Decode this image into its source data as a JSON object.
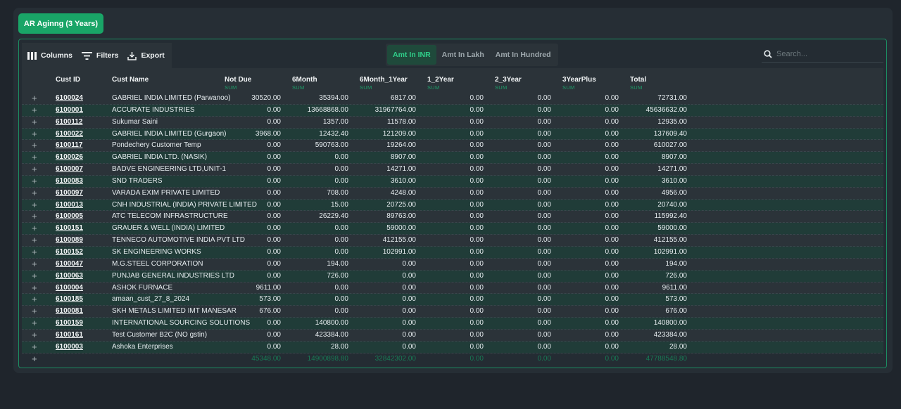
{
  "title_button": "AR Aginng (3 Years)",
  "toolbar": {
    "columns": "Columns",
    "filters": "Filters",
    "export": "Export"
  },
  "units": [
    "Amt In INR",
    "Amt In Lakh",
    "Amt In Hundred"
  ],
  "active_unit": "Amt In INR",
  "search": {
    "placeholder": "Search..."
  },
  "columns": {
    "cust_id": "Cust ID",
    "cust_name": "Cust Name",
    "not_due": "Not Due",
    "m6": "6Month",
    "m6_1y": "6Month_1Year",
    "y1_2": "1_2Year",
    "y2_3": "2_3Year",
    "y3plus": "3YearPlus",
    "total": "Total",
    "sum_label": "SUM"
  },
  "rows": [
    [
      "6100024",
      "GABRIEL INDIA LIMITED (Parwanoo)",
      "30520.00",
      "35394.00",
      "6817.00",
      "0.00",
      "0.00",
      "0.00",
      "72731.00"
    ],
    [
      "6100001",
      "ACCURATE INDUSTRIES",
      "0.00",
      "13668868.00",
      "31967764.00",
      "0.00",
      "0.00",
      "0.00",
      "45636632.00"
    ],
    [
      "6100112",
      "Sukumar Saini",
      "0.00",
      "1357.00",
      "11578.00",
      "0.00",
      "0.00",
      "0.00",
      "12935.00"
    ],
    [
      "6100022",
      "GABRIEL INDIA LIMITED (Gurgaon)",
      "3968.00",
      "12432.40",
      "121209.00",
      "0.00",
      "0.00",
      "0.00",
      "137609.40"
    ],
    [
      "6100117",
      "Pondechery Customer Temp",
      "0.00",
      "590763.00",
      "19264.00",
      "0.00",
      "0.00",
      "0.00",
      "610027.00"
    ],
    [
      "6100026",
      "GABRIEL INDIA LTD. (NASIK)",
      "0.00",
      "0.00",
      "8907.00",
      "0.00",
      "0.00",
      "0.00",
      "8907.00"
    ],
    [
      "6100007",
      "BADVE ENGINEERING LTD,UNIT-1",
      "0.00",
      "0.00",
      "14271.00",
      "0.00",
      "0.00",
      "0.00",
      "14271.00"
    ],
    [
      "6100083",
      "SND TRADERS",
      "0.00",
      "0.00",
      "3610.00",
      "0.00",
      "0.00",
      "0.00",
      "3610.00"
    ],
    [
      "6100097",
      "VARADA EXIM PRIVATE LIMITED",
      "0.00",
      "708.00",
      "4248.00",
      "0.00",
      "0.00",
      "0.00",
      "4956.00"
    ],
    [
      "6100013",
      "CNH INDUSTRIAL (INDIA) PRIVATE LIMITED",
      "0.00",
      "15.00",
      "20725.00",
      "0.00",
      "0.00",
      "0.00",
      "20740.00"
    ],
    [
      "6100005",
      "ATC TELECOM INFRASTRUCTURE",
      "0.00",
      "26229.40",
      "89763.00",
      "0.00",
      "0.00",
      "0.00",
      "115992.40"
    ],
    [
      "6100151",
      "GRAUER & WELL (INDIA) LIMITED",
      "0.00",
      "0.00",
      "59000.00",
      "0.00",
      "0.00",
      "0.00",
      "59000.00"
    ],
    [
      "6100089",
      "TENNECO AUTOMOTIVE INDIA PVT LTD",
      "0.00",
      "0.00",
      "412155.00",
      "0.00",
      "0.00",
      "0.00",
      "412155.00"
    ],
    [
      "6100152",
      "SK ENGINEERING WORKS",
      "0.00",
      "0.00",
      "102991.00",
      "0.00",
      "0.00",
      "0.00",
      "102991.00"
    ],
    [
      "6100047",
      "M.G.STEEL CORPORATION",
      "0.00",
      "194.00",
      "0.00",
      "0.00",
      "0.00",
      "0.00",
      "194.00"
    ],
    [
      "6100063",
      "PUNJAB GENERAL INDUSTRIES LTD",
      "0.00",
      "726.00",
      "0.00",
      "0.00",
      "0.00",
      "0.00",
      "726.00"
    ],
    [
      "6100004",
      "ASHOK FURNACE",
      "9611.00",
      "0.00",
      "0.00",
      "0.00",
      "0.00",
      "0.00",
      "9611.00"
    ],
    [
      "6100185",
      "amaan_cust_27_8_2024",
      "573.00",
      "0.00",
      "0.00",
      "0.00",
      "0.00",
      "0.00",
      "573.00"
    ],
    [
      "6100081",
      "SKH METALS LIMITED IMT MANESAR",
      "676.00",
      "0.00",
      "0.00",
      "0.00",
      "0.00",
      "0.00",
      "676.00"
    ],
    [
      "6100159",
      "INTERNATIONAL SOURCING SOLUTIONS",
      "0.00",
      "140800.00",
      "0.00",
      "0.00",
      "0.00",
      "0.00",
      "140800.00"
    ],
    [
      "6100161",
      "Test Customer B2C (NO gstin)",
      "0.00",
      "423384.00",
      "0.00",
      "0.00",
      "0.00",
      "0.00",
      "423384.00"
    ],
    [
      "6100003",
      "Ashoka Enterprises",
      "0.00",
      "28.00",
      "0.00",
      "0.00",
      "0.00",
      "0.00",
      "28.00"
    ]
  ],
  "totals": [
    "45348.00",
    "14900898.80",
    "32842302.00",
    "0.00",
    "0.00",
    "0.00",
    "47788548.80"
  ],
  "colors": {
    "accent": "#19a567",
    "active_text": "#2fd08a",
    "border": "#1c8d62"
  },
  "icons": {
    "columns": "columns-icon",
    "filters": "filter-icon",
    "export": "export-icon",
    "search": "search-icon",
    "expand": "plus-icon"
  }
}
